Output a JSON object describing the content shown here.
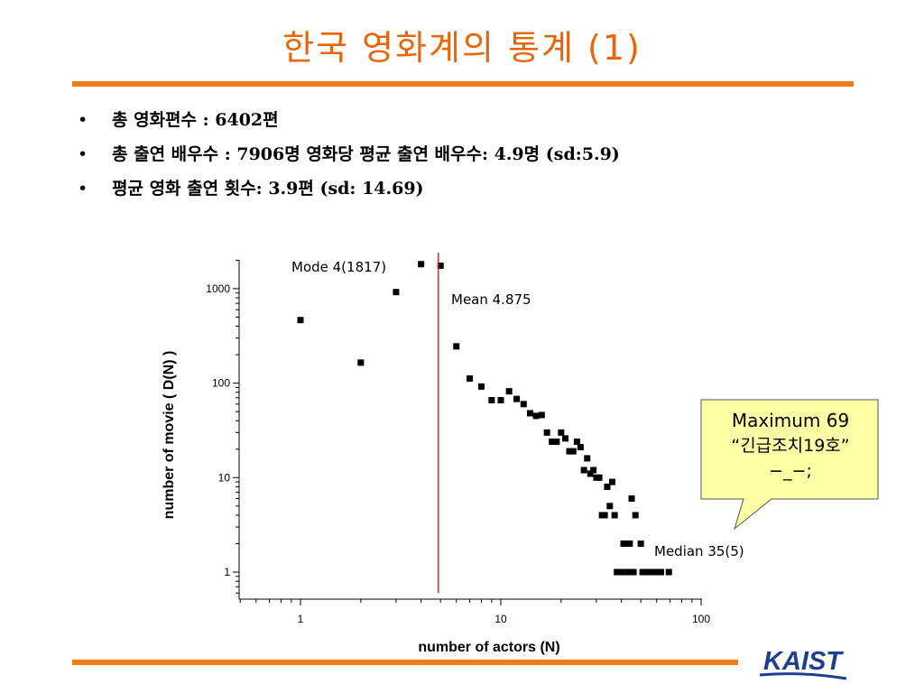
{
  "slide": {
    "title": "한국 영화계의 통계 (1)",
    "bullets": [
      "총 영화편수 : 6402편",
      "총 출연 배우수 : 7906명 영화당 평균 출연 배우수: 4.9명 (sd:5.9)",
      "평균 영화 출연 횟수: 3.9편 (sd: 14.69)"
    ],
    "bullet_marker": "•",
    "accent_color": "#f07c17",
    "title_color": "#e8650a",
    "logo_text": "KAIST"
  },
  "chart_data": {
    "type": "scatter",
    "xscale": "log",
    "yscale": "log",
    "xlabel": "number of actors (N)",
    "ylabel": "number of movie ( D(N) )",
    "xlim": [
      0.5,
      100
    ],
    "ylim": [
      0.7,
      1900
    ],
    "xticks": [
      1,
      10,
      100
    ],
    "xtick_labels": [
      "1",
      "10",
      "100"
    ],
    "yticks": [
      1,
      10,
      100,
      1000
    ],
    "ytick_labels": [
      "1",
      "10",
      "100",
      "1000"
    ],
    "grid": false,
    "points": [
      [
        1,
        465
      ],
      [
        2,
        165
      ],
      [
        3,
        920
      ],
      [
        4,
        1817
      ],
      [
        5,
        1750
      ],
      [
        6,
        245
      ],
      [
        7,
        112
      ],
      [
        8,
        92
      ],
      [
        9,
        66
      ],
      [
        10,
        66
      ],
      [
        11,
        82
      ],
      [
        12,
        68
      ],
      [
        13,
        60
      ],
      [
        14,
        48
      ],
      [
        15,
        45
      ],
      [
        16,
        46
      ],
      [
        17,
        30
      ],
      [
        18,
        24
      ],
      [
        19,
        24
      ],
      [
        20,
        30
      ],
      [
        21,
        26
      ],
      [
        22,
        19
      ],
      [
        23,
        19
      ],
      [
        24,
        24
      ],
      [
        25,
        21
      ],
      [
        26,
        12
      ],
      [
        27,
        16
      ],
      [
        28,
        11
      ],
      [
        29,
        12
      ],
      [
        30,
        10
      ],
      [
        31,
        10
      ],
      [
        32,
        4
      ],
      [
        33,
        4
      ],
      [
        34,
        8
      ],
      [
        35,
        5
      ],
      [
        36,
        9
      ],
      [
        37,
        4
      ],
      [
        38,
        1
      ],
      [
        39,
        1
      ],
      [
        40,
        1
      ],
      [
        41,
        2
      ],
      [
        42,
        2
      ],
      [
        43,
        1
      ],
      [
        44,
        2
      ],
      [
        45,
        6
      ],
      [
        46,
        1
      ],
      [
        47,
        4
      ],
      [
        50,
        2
      ],
      [
        51,
        1
      ],
      [
        53,
        1
      ],
      [
        55,
        1
      ],
      [
        56,
        1
      ],
      [
        58,
        1
      ],
      [
        60,
        1
      ],
      [
        63,
        1
      ],
      [
        69,
        1
      ]
    ],
    "mean_line": {
      "x": 4.875,
      "color": "#e02020"
    },
    "annotations": {
      "mode": "Mode   4(1817)",
      "mean": "Mean   4.875",
      "median": "Median   35(5)"
    },
    "callout": {
      "line1": "Maximum 69",
      "line2": "“긴급조치19호”",
      "line3": "−_−;",
      "fill": "#ffffa6"
    }
  }
}
